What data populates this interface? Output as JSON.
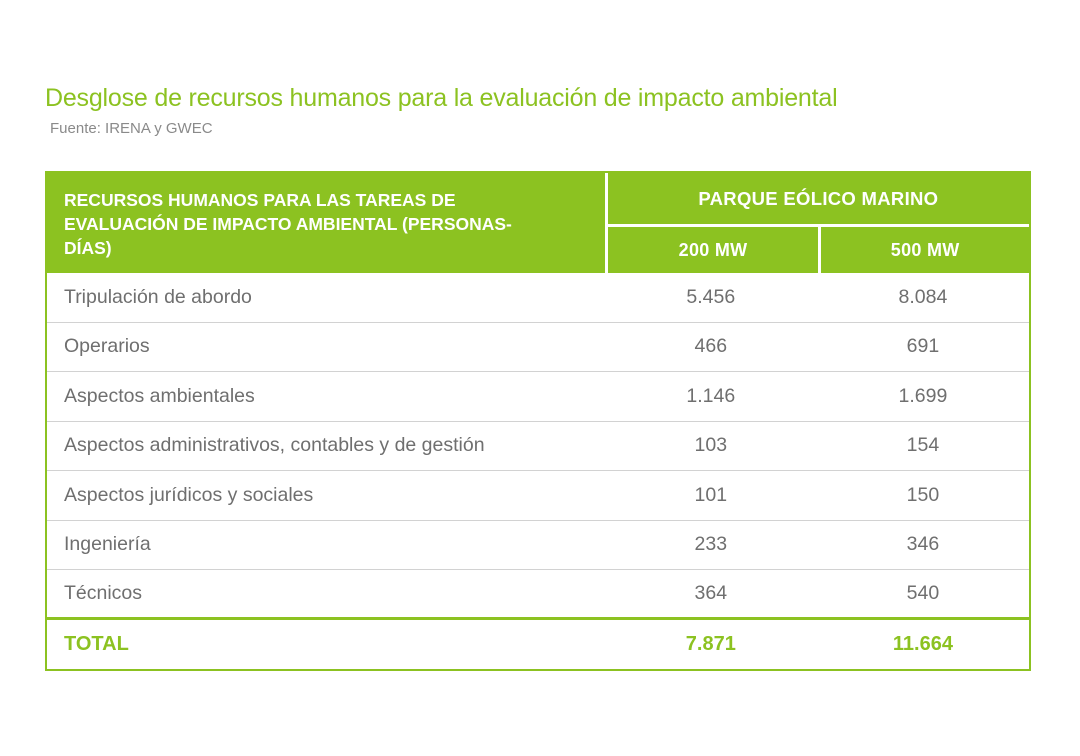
{
  "title": "Desglose de recursos humanos para la evaluación de impacto ambiental",
  "source": "Fuente: IRENA y GWEC",
  "colors": {
    "brand_green": "#8CC221",
    "header_text": "#FFFFFF",
    "body_text": "#6F6F6F",
    "source_text": "#8A8A8A",
    "row_divider": "#D2D2D2"
  },
  "chart_data": {
    "type": "table",
    "title": "Desglose de recursos humanos para la evaluación de impacto ambiental",
    "source": "Fuente: IRENA y GWEC",
    "corner_header": "RECURSOS HUMANOS PARA LAS TAREAS DE EVALUACIÓN DE IMPACTO AMBIENTAL (PERSONAS-DÍAS)",
    "group_header": "PARQUE EÓLICO MARINO",
    "columns": [
      "200 MW",
      "500 MW"
    ],
    "rows": [
      {
        "label": "Tripulación de abordo",
        "mw200": "5.456",
        "mw500": "8.084"
      },
      {
        "label": "Operarios",
        "mw200": "466",
        "mw500": "691"
      },
      {
        "label": "Aspectos ambientales",
        "mw200": "1.146",
        "mw500": "1.699"
      },
      {
        "label": "Aspectos administrativos, contables y de gestión",
        "mw200": "103",
        "mw500": "154"
      },
      {
        "label": "Aspectos jurídicos y sociales",
        "mw200": "101",
        "mw500": "150"
      },
      {
        "label": "Ingeniería",
        "mw200": "233",
        "mw500": "346"
      },
      {
        "label": "Técnicos",
        "mw200": "364",
        "mw500": "540"
      }
    ],
    "total": {
      "label": "TOTAL",
      "mw200": "7.871",
      "mw500": "11.664"
    }
  }
}
